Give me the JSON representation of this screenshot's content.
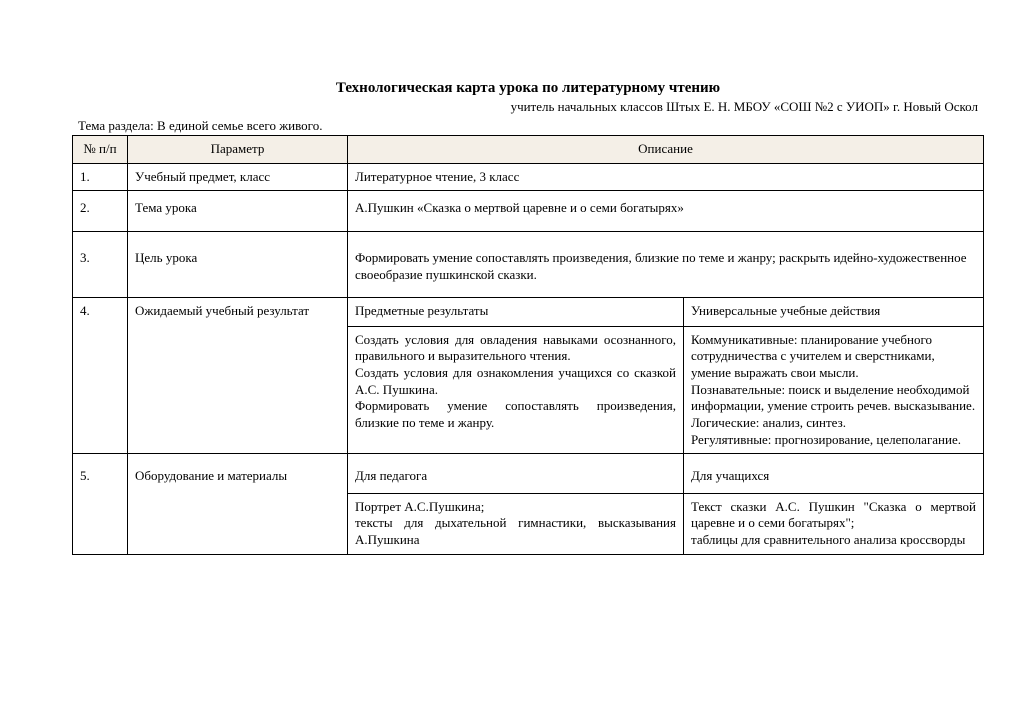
{
  "title": "Технологическая карта урока по литературному чтению",
  "subtitle": "учитель  начальных классов Штых Е. Н. МБОУ «СОШ №2 с УИОП» г. Новый Оскол",
  "section": "Тема раздела:  В единой семье всего живого.",
  "headers": {
    "num": "№ п/п",
    "param": "Параметр",
    "desc": "Описание"
  },
  "rows": {
    "r1": {
      "n": "1.",
      "p": "Учебный предмет, класс",
      "d": "Литературное чтение, 3 класс"
    },
    "r2": {
      "n": "2.",
      "p": "Тема  урока",
      "d": "А.Пушкин «Сказка о мертвой царевне и о семи богатырях»"
    },
    "r3": {
      "n": "3.",
      "p": "Цель урока",
      "d": "Формировать умение сопоставлять произведения, близкие по теме и жанру; раскрыть идейно-художественное своеобразие пушкинской сказки."
    },
    "r4": {
      "n": "4.",
      "p": "Ожидаемый учебный результат",
      "sub1": "Предметные результаты",
      "sub2": "Универсальные учебные действия",
      "c1": "Создать условия для овладения навыками осознанного, правильного и выразительного чтения.\nСоздать условия для ознакомления учащихся со сказкой А.С. Пушкина.\nФормировать умение сопоставлять произведения, близкие по теме и жанру.",
      "c2": "Коммуникативные: планирование учебного сотрудничества с учителем и сверстниками, умение выражать свои мысли.\nПознавательные: поиск и выделение необходимой информации, умение строить речев. высказывание.\n Логические: анализ, синтез.\nРегулятивные: прогнозирование, целеполагание."
    },
    "r5": {
      "n": "5.",
      "p": "Оборудование и материалы",
      "sub1": "Для педагога",
      "sub2": "Для учащихся",
      "c1": "Портрет А.С.Пушкина;\nтексты для дыхательной гимнастики, высказывания А.Пушкина",
      "c2": "Текст сказки А.С. Пушкин \"Сказка о мертвой царевне и о семи богатырях\";\nтаблицы для сравнительного анализа кроссворды"
    }
  }
}
